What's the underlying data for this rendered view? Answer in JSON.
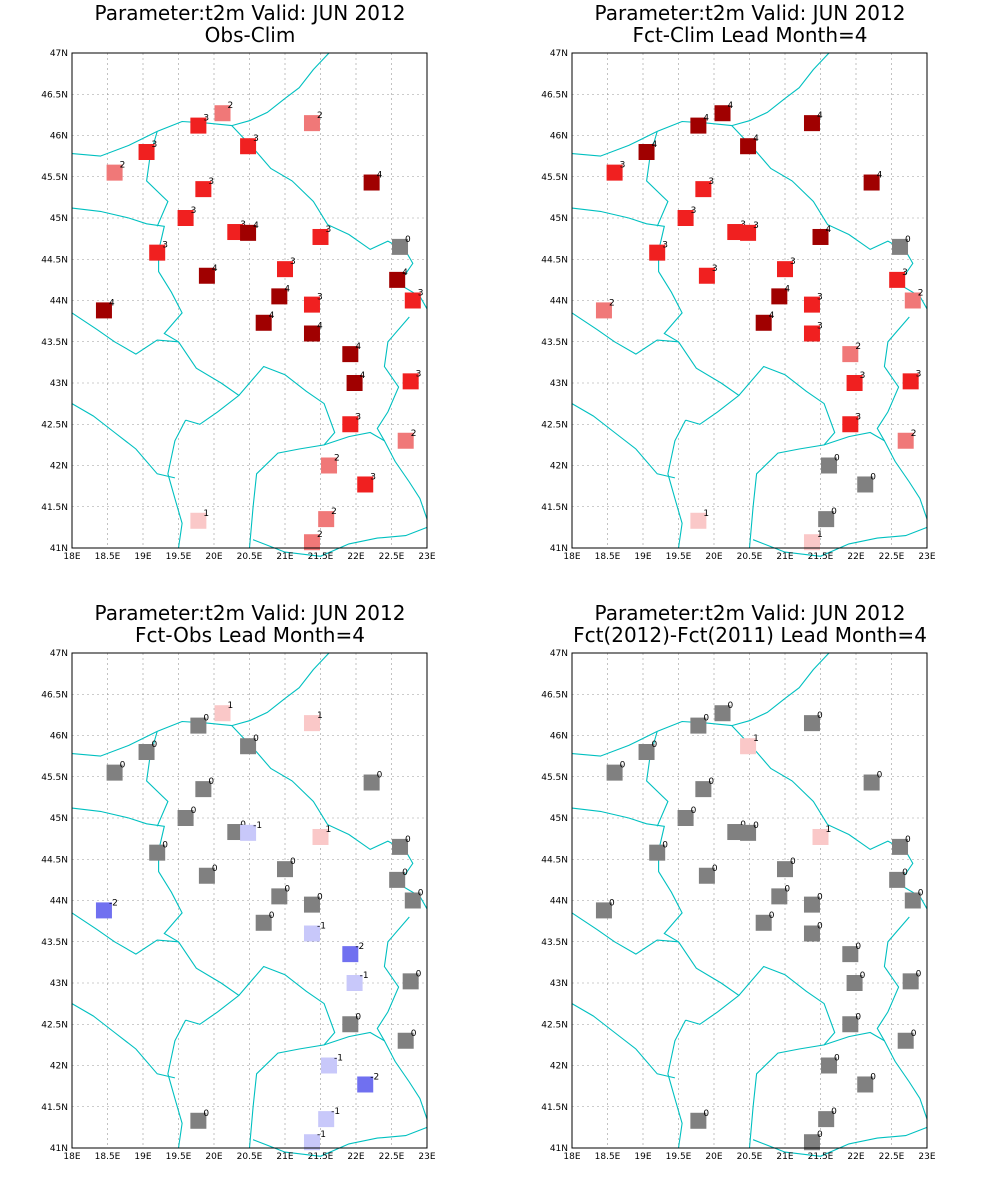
{
  "chart_data": [
    {
      "type": "map-scatter",
      "title": "Parameter:t2m Valid: JUN 2012",
      "subtitle": "Obs-Clim",
      "xlim": [
        18,
        23
      ],
      "ylim": [
        41,
        47
      ],
      "xticks": [
        "18E",
        "18.5E",
        "19E",
        "19.5E",
        "20E",
        "20.5E",
        "21E",
        "21.5E",
        "22E",
        "22.5E",
        "23E"
      ],
      "yticks": [
        "41N",
        "41.5N",
        "42N",
        "42.5N",
        "43N",
        "43.5N",
        "44N",
        "44.5N",
        "45N",
        "45.5N",
        "46N",
        "46.5N",
        "47N"
      ],
      "points": [
        {
          "lon": 18.45,
          "lat": 43.88,
          "v": 4
        },
        {
          "lon": 18.6,
          "lat": 45.55,
          "v": 2
        },
        {
          "lon": 19.05,
          "lat": 45.8,
          "v": 3
        },
        {
          "lon": 19.2,
          "lat": 44.58,
          "v": 3
        },
        {
          "lon": 19.6,
          "lat": 45.0,
          "v": 3
        },
        {
          "lon": 19.78,
          "lat": 46.12,
          "v": 3
        },
        {
          "lon": 19.85,
          "lat": 45.35,
          "v": 3
        },
        {
          "lon": 19.9,
          "lat": 44.3,
          "v": 4
        },
        {
          "lon": 20.12,
          "lat": 46.27,
          "v": 2
        },
        {
          "lon": 20.3,
          "lat": 44.83,
          "v": 3
        },
        {
          "lon": 20.48,
          "lat": 45.87,
          "v": 3
        },
        {
          "lon": 20.48,
          "lat": 44.82,
          "v": 4
        },
        {
          "lon": 20.7,
          "lat": 43.73,
          "v": 4
        },
        {
          "lon": 20.92,
          "lat": 44.05,
          "v": 4
        },
        {
          "lon": 21.0,
          "lat": 44.38,
          "v": 3
        },
        {
          "lon": 21.38,
          "lat": 46.15,
          "v": 2
        },
        {
          "lon": 21.38,
          "lat": 43.95,
          "v": 3
        },
        {
          "lon": 21.38,
          "lat": 43.6,
          "v": 4
        },
        {
          "lon": 21.5,
          "lat": 44.77,
          "v": 3
        },
        {
          "lon": 21.62,
          "lat": 42.0,
          "v": 2
        },
        {
          "lon": 21.58,
          "lat": 41.35,
          "v": 2
        },
        {
          "lon": 21.38,
          "lat": 41.07,
          "v": 2
        },
        {
          "lon": 21.92,
          "lat": 43.35,
          "v": 4
        },
        {
          "lon": 21.98,
          "lat": 43.0,
          "v": 4
        },
        {
          "lon": 21.92,
          "lat": 42.5,
          "v": 3
        },
        {
          "lon": 22.22,
          "lat": 45.43,
          "v": 4
        },
        {
          "lon": 22.13,
          "lat": 41.77,
          "v": 3
        },
        {
          "lon": 22.62,
          "lat": 44.65,
          "v": 0
        },
        {
          "lon": 22.58,
          "lat": 44.25,
          "v": 4
        },
        {
          "lon": 22.8,
          "lat": 44.0,
          "v": 3
        },
        {
          "lon": 22.77,
          "lat": 43.02,
          "v": 3
        },
        {
          "lon": 22.7,
          "lat": 42.3,
          "v": 2
        },
        {
          "lon": 19.78,
          "lat": 41.33,
          "v": 1
        }
      ]
    },
    {
      "type": "map-scatter",
      "title": "Parameter:t2m Valid: JUN 2012",
      "subtitle": "Fct-Clim Lead Month=4",
      "xlim": [
        18,
        23
      ],
      "ylim": [
        41,
        47
      ],
      "xticks": [
        "18E",
        "18.5E",
        "19E",
        "19.5E",
        "20E",
        "20.5E",
        "21E",
        "21.5E",
        "22E",
        "22.5E",
        "23E"
      ],
      "yticks": [
        "41N",
        "41.5N",
        "42N",
        "42.5N",
        "43N",
        "43.5N",
        "44N",
        "44.5N",
        "45N",
        "45.5N",
        "46N",
        "46.5N",
        "47N"
      ],
      "points": [
        {
          "lon": 18.45,
          "lat": 43.88,
          "v": 2
        },
        {
          "lon": 18.6,
          "lat": 45.55,
          "v": 3
        },
        {
          "lon": 19.05,
          "lat": 45.8,
          "v": 4
        },
        {
          "lon": 19.2,
          "lat": 44.58,
          "v": 3
        },
        {
          "lon": 19.6,
          "lat": 45.0,
          "v": 3
        },
        {
          "lon": 19.78,
          "lat": 46.12,
          "v": 4
        },
        {
          "lon": 19.85,
          "lat": 45.35,
          "v": 3
        },
        {
          "lon": 19.9,
          "lat": 44.3,
          "v": 3
        },
        {
          "lon": 20.12,
          "lat": 46.27,
          "v": 4
        },
        {
          "lon": 20.3,
          "lat": 44.83,
          "v": 3
        },
        {
          "lon": 20.48,
          "lat": 45.87,
          "v": 4
        },
        {
          "lon": 20.48,
          "lat": 44.82,
          "v": 3
        },
        {
          "lon": 20.7,
          "lat": 43.73,
          "v": 4
        },
        {
          "lon": 20.92,
          "lat": 44.05,
          "v": 4
        },
        {
          "lon": 21.0,
          "lat": 44.38,
          "v": 3
        },
        {
          "lon": 21.38,
          "lat": 46.15,
          "v": 4
        },
        {
          "lon": 21.38,
          "lat": 43.95,
          "v": 3
        },
        {
          "lon": 21.38,
          "lat": 43.6,
          "v": 3
        },
        {
          "lon": 21.5,
          "lat": 44.77,
          "v": 4
        },
        {
          "lon": 21.62,
          "lat": 42.0,
          "v": 0
        },
        {
          "lon": 21.58,
          "lat": 41.35,
          "v": 0
        },
        {
          "lon": 21.38,
          "lat": 41.07,
          "v": 1
        },
        {
          "lon": 21.92,
          "lat": 43.35,
          "v": 2
        },
        {
          "lon": 21.98,
          "lat": 43.0,
          "v": 3
        },
        {
          "lon": 21.92,
          "lat": 42.5,
          "v": 3
        },
        {
          "lon": 22.22,
          "lat": 45.43,
          "v": 4
        },
        {
          "lon": 22.13,
          "lat": 41.77,
          "v": 0
        },
        {
          "lon": 22.62,
          "lat": 44.65,
          "v": 0
        },
        {
          "lon": 22.58,
          "lat": 44.25,
          "v": 3
        },
        {
          "lon": 22.8,
          "lat": 44.0,
          "v": 2
        },
        {
          "lon": 22.77,
          "lat": 43.02,
          "v": 3
        },
        {
          "lon": 22.7,
          "lat": 42.3,
          "v": 2
        },
        {
          "lon": 19.78,
          "lat": 41.33,
          "v": 1
        }
      ]
    },
    {
      "type": "map-scatter",
      "title": "Parameter:t2m Valid: JUN 2012",
      "subtitle": "Fct-Obs Lead Month=4",
      "xlim": [
        18,
        23
      ],
      "ylim": [
        41,
        47
      ],
      "xticks": [
        "18E",
        "18.5E",
        "19E",
        "19.5E",
        "20E",
        "20.5E",
        "21E",
        "21.5E",
        "22E",
        "22.5E",
        "23E"
      ],
      "yticks": [
        "41N",
        "41.5N",
        "42N",
        "42.5N",
        "43N",
        "43.5N",
        "44N",
        "44.5N",
        "45N",
        "45.5N",
        "46N",
        "46.5N",
        "47N"
      ],
      "points": [
        {
          "lon": 18.45,
          "lat": 43.88,
          "v": -2
        },
        {
          "lon": 18.6,
          "lat": 45.55,
          "v": 0
        },
        {
          "lon": 19.05,
          "lat": 45.8,
          "v": 0
        },
        {
          "lon": 19.2,
          "lat": 44.58,
          "v": 0
        },
        {
          "lon": 19.6,
          "lat": 45.0,
          "v": 0
        },
        {
          "lon": 19.78,
          "lat": 46.12,
          "v": 0
        },
        {
          "lon": 19.85,
          "lat": 45.35,
          "v": 0
        },
        {
          "lon": 19.9,
          "lat": 44.3,
          "v": 0
        },
        {
          "lon": 20.12,
          "lat": 46.27,
          "v": 1
        },
        {
          "lon": 20.3,
          "lat": 44.83,
          "v": 0
        },
        {
          "lon": 20.48,
          "lat": 45.87,
          "v": 0
        },
        {
          "lon": 20.48,
          "lat": 44.82,
          "v": -1
        },
        {
          "lon": 20.7,
          "lat": 43.73,
          "v": 0
        },
        {
          "lon": 20.92,
          "lat": 44.05,
          "v": 0
        },
        {
          "lon": 21.0,
          "lat": 44.38,
          "v": 0
        },
        {
          "lon": 21.38,
          "lat": 46.15,
          "v": 1
        },
        {
          "lon": 21.38,
          "lat": 43.95,
          "v": 0
        },
        {
          "lon": 21.38,
          "lat": 43.6,
          "v": -1
        },
        {
          "lon": 21.5,
          "lat": 44.77,
          "v": 1
        },
        {
          "lon": 21.62,
          "lat": 42.0,
          "v": -1
        },
        {
          "lon": 21.58,
          "lat": 41.35,
          "v": -1
        },
        {
          "lon": 21.38,
          "lat": 41.07,
          "v": -1
        },
        {
          "lon": 21.92,
          "lat": 43.35,
          "v": -2
        },
        {
          "lon": 21.98,
          "lat": 43.0,
          "v": -1
        },
        {
          "lon": 21.92,
          "lat": 42.5,
          "v": 0
        },
        {
          "lon": 22.22,
          "lat": 45.43,
          "v": 0
        },
        {
          "lon": 22.13,
          "lat": 41.77,
          "v": -2
        },
        {
          "lon": 22.62,
          "lat": 44.65,
          "v": 0
        },
        {
          "lon": 22.58,
          "lat": 44.25,
          "v": 0
        },
        {
          "lon": 22.8,
          "lat": 44.0,
          "v": 0
        },
        {
          "lon": 22.77,
          "lat": 43.02,
          "v": 0
        },
        {
          "lon": 22.7,
          "lat": 42.3,
          "v": 0
        },
        {
          "lon": 19.78,
          "lat": 41.33,
          "v": 0
        }
      ]
    },
    {
      "type": "map-scatter",
      "title": "Parameter:t2m Valid: JUN 2012",
      "subtitle": "Fct(2012)-Fct(2011) Lead Month=4",
      "xlim": [
        18,
        23
      ],
      "ylim": [
        41,
        47
      ],
      "xticks": [
        "18E",
        "18.5E",
        "19E",
        "19.5E",
        "20E",
        "20.5E",
        "21E",
        "21.5E",
        "22E",
        "22.5E",
        "23E"
      ],
      "yticks": [
        "41N",
        "41.5N",
        "42N",
        "42.5N",
        "43N",
        "43.5N",
        "44N",
        "44.5N",
        "45N",
        "45.5N",
        "46N",
        "46.5N",
        "47N"
      ],
      "points": [
        {
          "lon": 18.45,
          "lat": 43.88,
          "v": 0
        },
        {
          "lon": 18.6,
          "lat": 45.55,
          "v": 0
        },
        {
          "lon": 19.05,
          "lat": 45.8,
          "v": 0
        },
        {
          "lon": 19.2,
          "lat": 44.58,
          "v": 0
        },
        {
          "lon": 19.6,
          "lat": 45.0,
          "v": 0
        },
        {
          "lon": 19.78,
          "lat": 46.12,
          "v": 0
        },
        {
          "lon": 19.85,
          "lat": 45.35,
          "v": 0
        },
        {
          "lon": 19.9,
          "lat": 44.3,
          "v": 0
        },
        {
          "lon": 20.12,
          "lat": 46.27,
          "v": 0
        },
        {
          "lon": 20.3,
          "lat": 44.83,
          "v": 0
        },
        {
          "lon": 20.48,
          "lat": 45.87,
          "v": 1
        },
        {
          "lon": 20.48,
          "lat": 44.82,
          "v": 0
        },
        {
          "lon": 20.7,
          "lat": 43.73,
          "v": 0
        },
        {
          "lon": 20.92,
          "lat": 44.05,
          "v": 0
        },
        {
          "lon": 21.0,
          "lat": 44.38,
          "v": 0
        },
        {
          "lon": 21.38,
          "lat": 46.15,
          "v": 0
        },
        {
          "lon": 21.38,
          "lat": 43.95,
          "v": 0
        },
        {
          "lon": 21.38,
          "lat": 43.6,
          "v": 0
        },
        {
          "lon": 21.5,
          "lat": 44.77,
          "v": 1
        },
        {
          "lon": 21.62,
          "lat": 42.0,
          "v": 0
        },
        {
          "lon": 21.58,
          "lat": 41.35,
          "v": 0
        },
        {
          "lon": 21.38,
          "lat": 41.07,
          "v": 0
        },
        {
          "lon": 21.92,
          "lat": 43.35,
          "v": 0
        },
        {
          "lon": 21.98,
          "lat": 43.0,
          "v": 0
        },
        {
          "lon": 21.92,
          "lat": 42.5,
          "v": 0
        },
        {
          "lon": 22.22,
          "lat": 45.43,
          "v": 0
        },
        {
          "lon": 22.13,
          "lat": 41.77,
          "v": 0
        },
        {
          "lon": 22.62,
          "lat": 44.65,
          "v": 0
        },
        {
          "lon": 22.58,
          "lat": 44.25,
          "v": 0
        },
        {
          "lon": 22.8,
          "lat": 44.0,
          "v": 0
        },
        {
          "lon": 22.77,
          "lat": 43.02,
          "v": 0
        },
        {
          "lon": 22.7,
          "lat": 42.3,
          "v": 0
        },
        {
          "lon": 19.78,
          "lat": 41.33,
          "v": 0
        }
      ]
    }
  ],
  "colors": {
    "-2": "#7070f0",
    "-1": "#c8c8fa",
    "0": "#808080",
    "1": "#fac8c8",
    "2": "#f07878",
    "3": "#f02020",
    "4": "#a00000",
    "border": "#00c0c0",
    "grid": "#999999"
  }
}
